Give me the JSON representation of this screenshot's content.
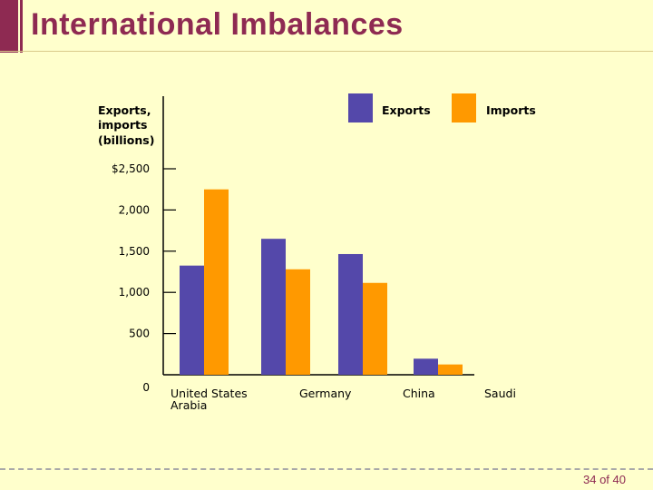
{
  "slide": {
    "title": "International Imbalances",
    "page_number": "34 of 40"
  },
  "colors": {
    "accent": "#8E2A52",
    "background": "#FFFFCC",
    "exports": "#5448AA",
    "imports": "#FF9900"
  },
  "chart_data": {
    "type": "bar",
    "ylabel": "Exports, imports (billions)",
    "ylim": [
      0,
      2500
    ],
    "yticks": [
      {
        "value": 0,
        "label": "0"
      },
      {
        "value": 500,
        "label": "500"
      },
      {
        "value": 1000,
        "label": "1,000"
      },
      {
        "value": 1500,
        "label": "1,500"
      },
      {
        "value": 2000,
        "label": "2,000"
      },
      {
        "value": 2500,
        "label": "$2,500"
      }
    ],
    "categories": [
      "United States",
      "Germany",
      "China",
      "Saudi Arabia"
    ],
    "category_labels": [
      {
        "line1": "United States",
        "line2": "Arabia"
      },
      {
        "line1": "Germany",
        "line2": ""
      },
      {
        "line1": "China",
        "line2": ""
      },
      {
        "line1": "Saudi",
        "line2": ""
      }
    ],
    "series": [
      {
        "name": "Exports",
        "color": "#5448AA",
        "values": [
          1325,
          1650,
          1465,
          195
        ]
      },
      {
        "name": "Imports",
        "color": "#FF9900",
        "values": [
          2250,
          1280,
          1115,
          125
        ]
      }
    ],
    "legend": "top-right",
    "grid": false
  }
}
